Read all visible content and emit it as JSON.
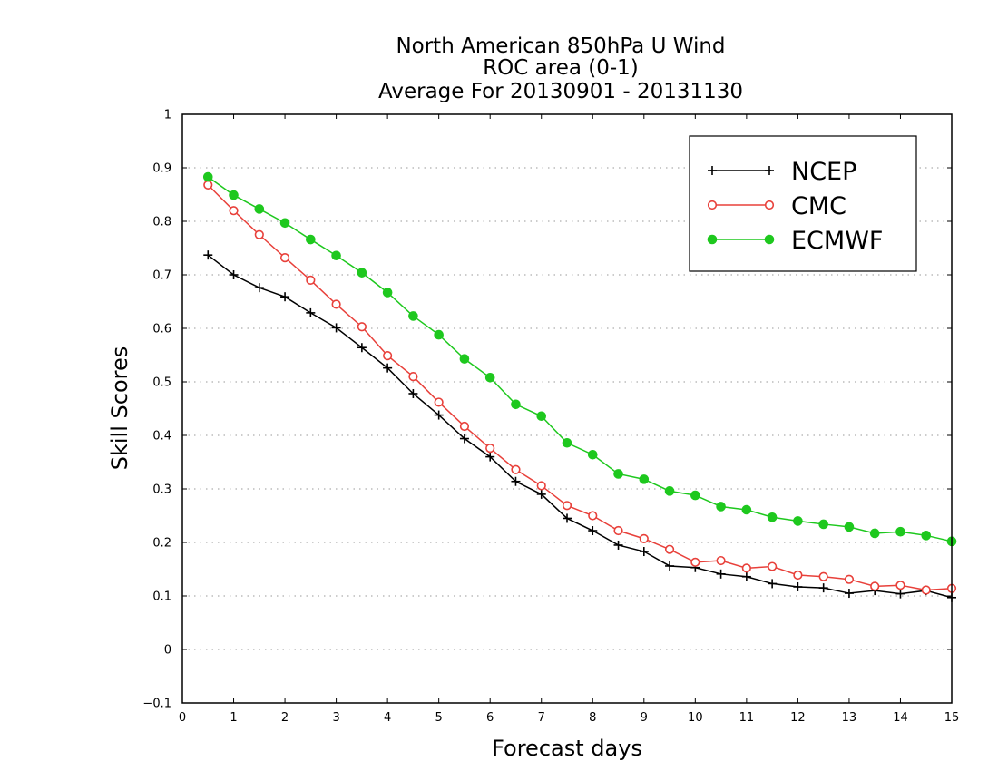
{
  "chart_data": {
    "type": "line",
    "title_lines": [
      "North American 850hPa U Wind",
      "ROC area (0-1)",
      "Average For 20130901 - 20131130"
    ],
    "xlabel": "Forecast days",
    "ylabel": "Skill Scores",
    "xlim": [
      0,
      15
    ],
    "ylim": [
      -0.1,
      1
    ],
    "x_ticks": [
      0,
      1,
      2,
      3,
      4,
      5,
      6,
      7,
      8,
      9,
      10,
      11,
      12,
      13,
      14,
      15
    ],
    "x_tick_labels": [
      "0",
      "1",
      "2",
      "3",
      "4",
      "5",
      "6",
      "7",
      "8",
      "9",
      "10",
      "11",
      "12",
      "13",
      "14",
      "15"
    ],
    "y_ticks": [
      -0.1,
      0,
      0.1,
      0.2,
      0.3,
      0.4,
      0.5,
      0.6,
      0.7,
      0.8,
      0.9,
      1
    ],
    "y_tick_labels": [
      "−0.1",
      "0",
      "0.1",
      "0.2",
      "0.3",
      "0.4",
      "0.5",
      "0.6",
      "0.7",
      "0.8",
      "0.9",
      "1"
    ],
    "grid": "dotted horizontal",
    "legend_position": "top-right",
    "x": [
      0.5,
      1,
      1.5,
      2,
      2.5,
      3,
      3.5,
      4,
      4.5,
      5,
      5.5,
      6,
      6.5,
      7,
      7.5,
      8,
      8.5,
      9,
      9.5,
      10,
      10.5,
      11,
      11.5,
      12,
      12.5,
      13,
      13.5,
      14,
      14.5,
      15
    ],
    "series": [
      {
        "name": "NCEP",
        "color": "#000000",
        "marker": "plus",
        "values": [
          0.737,
          0.7,
          0.676,
          0.659,
          0.629,
          0.601,
          0.564,
          0.526,
          0.478,
          0.438,
          0.394,
          0.36,
          0.314,
          0.29,
          0.245,
          0.222,
          0.195,
          0.183,
          0.156,
          0.153,
          0.141,
          0.136,
          0.123,
          0.117,
          0.115,
          0.105,
          0.11,
          0.104,
          0.11,
          0.097
        ]
      },
      {
        "name": "CMC",
        "color": "#e8403a",
        "marker": "open-circle",
        "values": [
          0.868,
          0.82,
          0.775,
          0.732,
          0.69,
          0.645,
          0.603,
          0.549,
          0.51,
          0.462,
          0.417,
          0.376,
          0.336,
          0.306,
          0.269,
          0.25,
          0.222,
          0.207,
          0.187,
          0.163,
          0.166,
          0.152,
          0.155,
          0.139,
          0.136,
          0.131,
          0.118,
          0.12,
          0.111,
          0.114
        ]
      },
      {
        "name": "ECMWF",
        "color": "#1ec81e",
        "marker": "filled-circle",
        "values": [
          0.883,
          0.849,
          0.823,
          0.797,
          0.766,
          0.736,
          0.704,
          0.667,
          0.623,
          0.588,
          0.543,
          0.508,
          0.458,
          0.436,
          0.386,
          0.364,
          0.328,
          0.318,
          0.296,
          0.288,
          0.267,
          0.261,
          0.247,
          0.24,
          0.234,
          0.229,
          0.217,
          0.22,
          0.213,
          0.202
        ]
      }
    ]
  }
}
